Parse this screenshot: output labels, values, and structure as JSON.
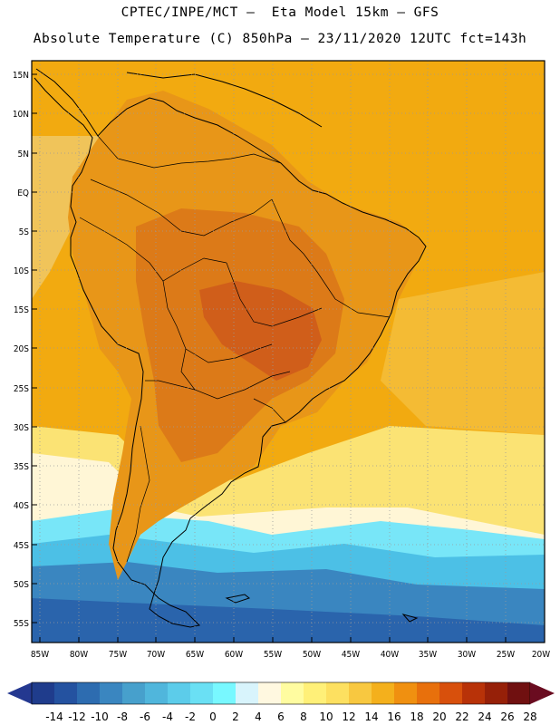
{
  "title_line1": "CPTEC/INPE/MCT –  Eta Model 15km – GFS",
  "title_line2": "Absolute Temperature (C) 850hPa – 23/11/2020 12UTC fct=143h",
  "lat_labels": [
    "15N",
    "10N",
    "5N",
    "EQ",
    "5S",
    "10S",
    "15S",
    "20S",
    "25S",
    "30S",
    "35S",
    "40S",
    "45S",
    "50S",
    "55S"
  ],
  "lon_labels": [
    "85W",
    "80W",
    "75W",
    "70W",
    "65W",
    "60W",
    "55W",
    "50W",
    "45W",
    "40W",
    "35W",
    "30W",
    "25W",
    "20W"
  ],
  "colorbar": {
    "labels": [
      "-14",
      "-12",
      "-10",
      "-8",
      "-6",
      "-4",
      "-2",
      "0",
      "2",
      "4",
      "6",
      "8",
      "10",
      "12",
      "14",
      "16",
      "18",
      "20",
      "22",
      "24",
      "26",
      "28"
    ],
    "colors": [
      "#1f3c8c",
      "#2452a0",
      "#2d6cb0",
      "#3a86c0",
      "#47a0cc",
      "#50b6dc",
      "#5cccea",
      "#6ae0f4",
      "#78f8ff",
      "#d8f4fc",
      "#fff8e0",
      "#fffca0",
      "#fff078",
      "#fde060",
      "#f8c840",
      "#f4b01c",
      "#f09010",
      "#e8700c",
      "#d8500c",
      "#b83208",
      "#962008",
      "#701010"
    ],
    "under_color": "#243890",
    "over_color": "#6a0c20"
  },
  "regions": {
    "ocean_north": "#f2aa10",
    "tropical_pacific": "#f0c45a",
    "land_warm": "#e89618",
    "land_hot": "#dc7a18",
    "land_hottest": "#d05e1a",
    "mid_atlantic": "#f4bb34",
    "south_yellow": "#fbe374",
    "pale_band": "#fff6d6",
    "cyan_band": "#78e6f8",
    "sky_band": "#4cc0e6",
    "south_blue": "#3a86c0",
    "deep_blue": "#2a64ac"
  }
}
